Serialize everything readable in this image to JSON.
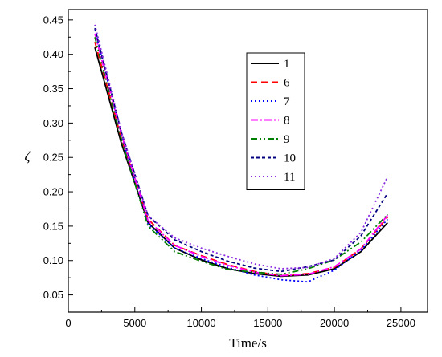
{
  "chart_data": {
    "type": "line",
    "xlabel": "Time/s",
    "ylabel": "ζ",
    "xlim": [
      0,
      27000
    ],
    "ylim": [
      0.025,
      0.465
    ],
    "xticks": [
      0,
      5000,
      10000,
      15000,
      20000,
      25000
    ],
    "yticks": [
      0.05,
      0.1,
      0.15,
      0.2,
      0.25,
      0.3,
      0.35,
      0.4,
      0.45
    ],
    "xtick_labels": [
      "0",
      "5000",
      "10000",
      "15000",
      "20000",
      "25000"
    ],
    "ytick_labels": [
      "0.05",
      "0.10",
      "0.15",
      "0.20",
      "0.25",
      "0.30",
      "0.35",
      "0.40",
      "0.45"
    ],
    "legend_position": "upper-center",
    "x": [
      2000,
      4000,
      6000,
      8000,
      10000,
      12000,
      14000,
      16000,
      18000,
      20000,
      22000,
      24000
    ],
    "series": [
      {
        "name": "1",
        "color": "#000000",
        "dash": "solid",
        "values": [
          0.41,
          0.27,
          0.155,
          0.118,
          0.101,
          0.088,
          0.081,
          0.077,
          0.079,
          0.088,
          0.113,
          0.155
        ]
      },
      {
        "name": "6",
        "color": "#ff0000",
        "dash": "dash",
        "values": [
          0.418,
          0.277,
          0.16,
          0.122,
          0.107,
          0.094,
          0.084,
          0.078,
          0.081,
          0.09,
          0.117,
          0.163
        ]
      },
      {
        "name": "7",
        "color": "#0000ff",
        "dash": "dot",
        "values": [
          0.436,
          0.281,
          0.153,
          0.118,
          0.103,
          0.09,
          0.079,
          0.072,
          0.069,
          0.086,
          0.115,
          0.16
        ]
      },
      {
        "name": "8",
        "color": "#ff00ff",
        "dash": "dashdot",
        "values": [
          0.43,
          0.283,
          0.158,
          0.122,
          0.106,
          0.093,
          0.083,
          0.078,
          0.08,
          0.091,
          0.117,
          0.166
        ]
      },
      {
        "name": "9",
        "color": "#008000",
        "dash": "dashdotdot",
        "values": [
          0.425,
          0.275,
          0.15,
          0.113,
          0.099,
          0.087,
          0.083,
          0.08,
          0.088,
          0.101,
          0.127,
          0.167
        ]
      },
      {
        "name": "10",
        "color": "#000080",
        "dash": "shortdash",
        "values": [
          0.438,
          0.286,
          0.165,
          0.13,
          0.113,
          0.099,
          0.089,
          0.084,
          0.091,
          0.101,
          0.136,
          0.198
        ]
      },
      {
        "name": "11",
        "color": "#8a2be2",
        "dash": "dot",
        "values": [
          0.443,
          0.287,
          0.165,
          0.133,
          0.118,
          0.106,
          0.095,
          0.088,
          0.09,
          0.103,
          0.141,
          0.222
        ]
      }
    ]
  }
}
